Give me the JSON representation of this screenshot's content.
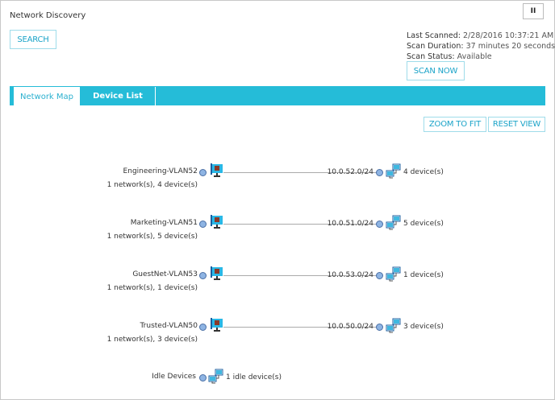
{
  "header": {
    "title": "Network Discovery",
    "search_label": "SEARCH",
    "pause_label": "II"
  },
  "scan": {
    "last_scanned_label": "Last Scanned:",
    "last_scanned": "2/28/2016 10:37:21 AM",
    "duration_label": "Scan Duration:",
    "duration": "37 minutes 20 seconds",
    "status_label": "Scan Status:",
    "status": "Available",
    "scan_now_label": "SCAN NOW"
  },
  "tabs": [
    {
      "label": "Network Map",
      "active": true
    },
    {
      "label": "Device List",
      "active": false
    }
  ],
  "map_toolbar": {
    "zoom_to_fit": "ZOOM TO FIT",
    "reset_view": "RESET VIEW"
  },
  "vlans": [
    {
      "name": "Engineering-VLAN52",
      "summary": "1 network(s), 4 device(s)",
      "subnet": "10.0.52.0/24",
      "devices": "4 device(s)"
    },
    {
      "name": "Marketing-VLAN51",
      "summary": "1 network(s), 5 device(s)",
      "subnet": "10.0.51.0/24",
      "devices": "5 device(s)"
    },
    {
      "name": "GuestNet-VLAN53",
      "summary": "1 network(s), 1 device(s)",
      "subnet": "10.0.53.0/24",
      "devices": "1 device(s)"
    },
    {
      "name": "Trusted-VLAN50",
      "summary": "1 network(s), 3 device(s)",
      "subnet": "10.0.50.0/24",
      "devices": "3 device(s)"
    }
  ],
  "idle": {
    "name": "Idle Devices",
    "devices": "1 idle device(s)"
  },
  "colors": {
    "accent": "#25bcd8",
    "button_text": "#1aa3c8"
  }
}
